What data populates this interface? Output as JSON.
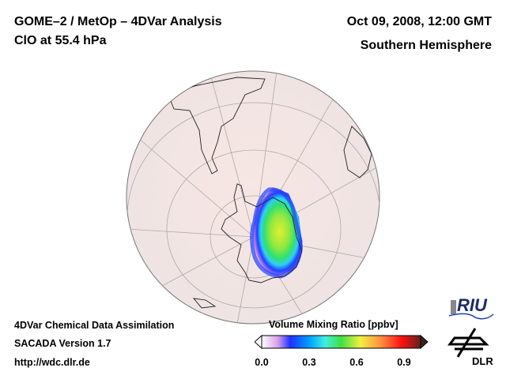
{
  "header": {
    "title_line1": "GOME–2 / MetOp – 4DVar Analysis",
    "title_line2": "ClO at 55.4 hPa",
    "date": "Oct 09, 2008, 12:00 GMT",
    "region": "Southern Hemisphere"
  },
  "footer": {
    "line1": "4DVar Chemical Data Assimilation",
    "line2": "SACADA Version 1.7",
    "line3": "http://wdc.dlr.de"
  },
  "colorbar": {
    "title": "Volume Mixing Ratio [ppbv]",
    "ticks": [
      "0.0",
      "0.3",
      "0.6",
      "0.9"
    ],
    "range": [
      0.0,
      1.0
    ],
    "colors": [
      "#ffffff",
      "#d8a0e8",
      "#2030ff",
      "#00a0ff",
      "#40f0e0",
      "#40e040",
      "#f0f040",
      "#ff9040",
      "#ff1010",
      "#602020"
    ]
  },
  "logos": {
    "riu": "RIU",
    "dlr": "DLR"
  },
  "map": {
    "ocean_color": "#f4e6e4",
    "projection": "orthographic south polar view"
  }
}
